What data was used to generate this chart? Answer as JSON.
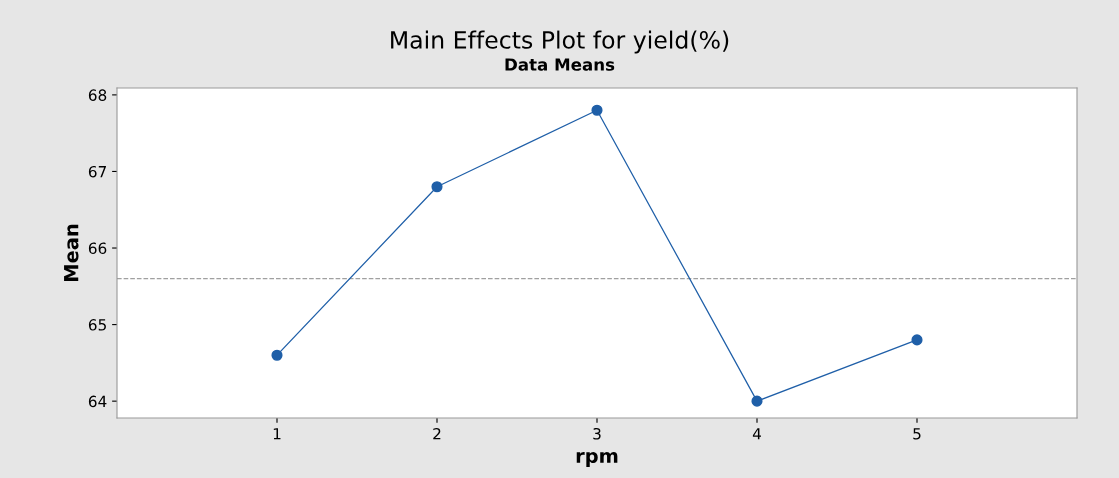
{
  "chart_data": {
    "type": "line",
    "title": "Main Effects Plot for yield(%)",
    "subtitle": "Data Means",
    "xlabel": "rpm",
    "ylabel": "Mean",
    "categories": [
      "1",
      "2",
      "3",
      "4",
      "5"
    ],
    "series": [
      {
        "color": "#1f5fa8",
        "values": [
          64.6,
          66.8,
          67.8,
          64.0,
          64.8
        ]
      }
    ],
    "ylim": [
      63.78,
      68.09
    ],
    "yticks": [
      64,
      65,
      66,
      67,
      68
    ],
    "grid": false,
    "marker": "circle",
    "line_style": "solid",
    "ref_lines": [
      {
        "axis": "y",
        "value": 65.6,
        "color": "#a0a0a0",
        "line_style": "dashed"
      }
    ]
  }
}
